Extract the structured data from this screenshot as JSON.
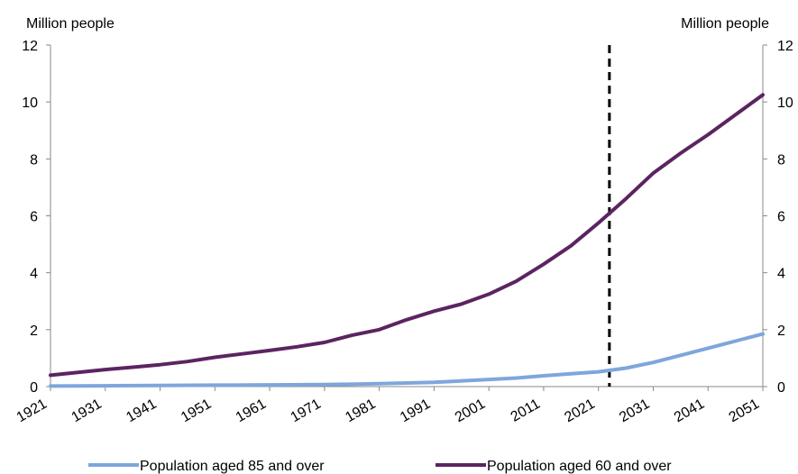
{
  "chart_data": {
    "type": "line",
    "y_unit_left": "Million people",
    "y_unit_right": "Million people",
    "ylim": [
      0,
      12
    ],
    "yticks": [
      0,
      2,
      4,
      6,
      8,
      10,
      12
    ],
    "yticks_right": [
      0,
      2,
      4,
      6,
      8,
      10,
      12
    ],
    "xlim": [
      1921,
      2051
    ],
    "xticks": [
      "1921",
      "1931",
      "1941",
      "1951",
      "1961",
      "1971",
      "1981",
      "1991",
      "2001",
      "2011",
      "2021",
      "2031",
      "2041",
      "2051"
    ],
    "projection_marker_x": 2023,
    "legend_position": "bottom",
    "grid": false,
    "series": [
      {
        "name": "Population aged 85 and over",
        "color": "#7ea6dc",
        "points": [
          [
            1921,
            0.02
          ],
          [
            1931,
            0.03
          ],
          [
            1941,
            0.04
          ],
          [
            1951,
            0.05
          ],
          [
            1961,
            0.06
          ],
          [
            1971,
            0.07
          ],
          [
            1981,
            0.1
          ],
          [
            1991,
            0.15
          ],
          [
            2001,
            0.25
          ],
          [
            2006,
            0.3
          ],
          [
            2011,
            0.38
          ],
          [
            2016,
            0.45
          ],
          [
            2021,
            0.52
          ],
          [
            2026,
            0.65
          ],
          [
            2031,
            0.85
          ],
          [
            2036,
            1.1
          ],
          [
            2041,
            1.35
          ],
          [
            2046,
            1.6
          ],
          [
            2051,
            1.85
          ]
        ]
      },
      {
        "name": "Population aged 60 and over",
        "color": "#5b2461",
        "points": [
          [
            1921,
            0.4
          ],
          [
            1926,
            0.5
          ],
          [
            1931,
            0.6
          ],
          [
            1936,
            0.68
          ],
          [
            1941,
            0.77
          ],
          [
            1946,
            0.88
          ],
          [
            1951,
            1.03
          ],
          [
            1956,
            1.15
          ],
          [
            1961,
            1.27
          ],
          [
            1966,
            1.4
          ],
          [
            1971,
            1.55
          ],
          [
            1976,
            1.8
          ],
          [
            1981,
            2.0
          ],
          [
            1986,
            2.35
          ],
          [
            1991,
            2.65
          ],
          [
            1996,
            2.9
          ],
          [
            2001,
            3.25
          ],
          [
            2006,
            3.7
          ],
          [
            2011,
            4.3
          ],
          [
            2016,
            4.95
          ],
          [
            2021,
            5.75
          ],
          [
            2026,
            6.6
          ],
          [
            2031,
            7.5
          ],
          [
            2036,
            8.2
          ],
          [
            2041,
            8.85
          ],
          [
            2046,
            9.55
          ],
          [
            2051,
            10.25
          ]
        ]
      }
    ]
  }
}
